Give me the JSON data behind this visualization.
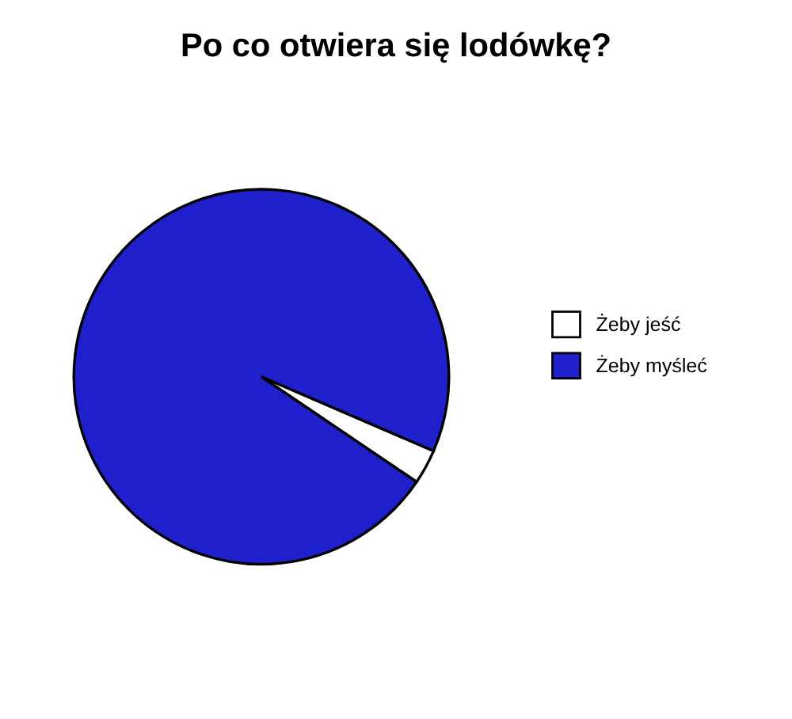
{
  "chart_data": {
    "type": "pie",
    "title": "Po co otwiera się lodówkę?",
    "categories": [
      "Żeby jeść",
      "Żeby myśleć"
    ],
    "values": [
      3,
      97
    ],
    "colors": [
      "#ffffff",
      "#1f1fcc"
    ],
    "legend": "right"
  }
}
